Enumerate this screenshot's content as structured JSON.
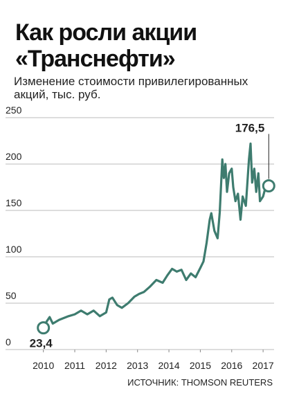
{
  "chart_data": {
    "type": "line",
    "title": "Как росли акции «Транснефти»",
    "subtitle": "Изменение стоимости привилегированных акций, тыс. руб.",
    "source": "ИСТОЧНИК: THOMSON REUTERS",
    "series": [
      {
        "color": "#3e7c6f",
        "x": [
          2010.0,
          2010.1,
          2010.2,
          2010.3,
          2010.5,
          2010.8,
          2011.0,
          2011.2,
          2011.4,
          2011.6,
          2011.8,
          2012.0,
          2012.1,
          2012.2,
          2012.35,
          2012.5,
          2012.7,
          2012.9,
          2013.05,
          2013.2,
          2013.4,
          2013.6,
          2013.8,
          2013.95,
          2014.1,
          2014.25,
          2014.4,
          2014.55,
          2014.7,
          2014.85,
          2015.0,
          2015.1,
          2015.2,
          2015.3,
          2015.35,
          2015.45,
          2015.55,
          2015.62,
          2015.7,
          2015.75,
          2015.8,
          2015.85,
          2015.92,
          2016.0,
          2016.05,
          2016.12,
          2016.2,
          2016.28,
          2016.35,
          2016.45,
          2016.55,
          2016.6,
          2016.65,
          2016.72,
          2016.78,
          2016.85,
          2016.9,
          2017.0,
          2017.1,
          2017.18
        ],
        "values": [
          23.4,
          30,
          35,
          28,
          32,
          36,
          38,
          42,
          38,
          42,
          36,
          40,
          54,
          56,
          48,
          45,
          50,
          57,
          60,
          62,
          68,
          75,
          72,
          80,
          87,
          84,
          86,
          75,
          82,
          78,
          88,
          95,
          115,
          140,
          147,
          128,
          120,
          148,
          205,
          185,
          200,
          170,
          190,
          195,
          175,
          160,
          168,
          140,
          165,
          155,
          205,
          222,
          180,
          195,
          170,
          190,
          160,
          165,
          178,
          176.5
        ],
        "value_labels": [
          "23,4",
          null,
          null,
          null,
          null,
          null,
          null,
          null,
          null,
          null,
          null,
          null,
          null,
          null,
          null,
          null,
          null,
          null,
          null,
          null,
          null,
          null,
          null,
          null,
          null,
          null,
          null,
          null,
          null,
          null,
          null,
          null,
          null,
          null,
          null,
          null,
          null,
          null,
          null,
          null,
          null,
          null,
          null,
          null,
          null,
          null,
          null,
          null,
          null,
          null,
          null,
          null,
          null,
          null,
          null,
          null,
          null,
          null,
          null,
          "176,5"
        ]
      }
    ],
    "xlim": [
      2009.5,
      2017.35
    ],
    "xticks": [
      2010,
      2011,
      2012,
      2013,
      2014,
      2015,
      2016,
      2017
    ],
    "ylim": [
      0,
      250
    ],
    "yticks": [
      0,
      50,
      100,
      150,
      200,
      250
    ],
    "grid": true
  }
}
